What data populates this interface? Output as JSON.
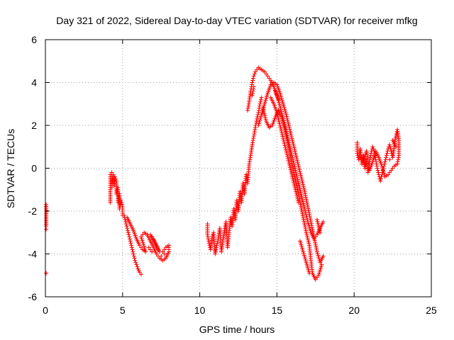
{
  "chart_data": {
    "type": "scatter",
    "title": "Day 321 of 2022, Sidereal Day-to-day VTEC variation (SDTVAR) for receiver mfkg",
    "xlabel": "GPS time / hours",
    "ylabel": "SDTVAR / TECUs",
    "xlim": [
      0,
      25
    ],
    "ylim": [
      -6,
      6
    ],
    "xticks": [
      "0",
      "5",
      "10",
      "15",
      "20",
      "25"
    ],
    "yticks": [
      "-6",
      "-4",
      "-2",
      "0",
      "2",
      "4",
      "6"
    ],
    "grid": true,
    "marker": "plus",
    "color": "#ff0000",
    "series": [
      {
        "points": [
          [
            0.05,
            -1.7
          ],
          [
            0.05,
            -2.2
          ],
          [
            0.05,
            -2.7
          ],
          [
            0.05,
            -2.85
          ],
          [
            0.05,
            -4.9
          ],
          [
            4.2,
            -0.3
          ],
          [
            4.2,
            -0.6
          ],
          [
            4.2,
            -1.0
          ],
          [
            4.2,
            -1.6
          ],
          [
            4.3,
            -0.2
          ],
          [
            4.3,
            -0.5
          ],
          [
            4.3,
            -0.9
          ],
          [
            4.4,
            -0.3
          ],
          [
            4.45,
            -0.8
          ],
          [
            4.5,
            -0.4
          ],
          [
            4.6,
            -0.6
          ],
          [
            4.6,
            -1.2
          ],
          [
            4.7,
            -0.9
          ],
          [
            4.7,
            -1.6
          ],
          [
            4.8,
            -1.2
          ],
          [
            4.8,
            -1.9
          ],
          [
            4.9,
            -1.5
          ],
          [
            5.0,
            -1.8
          ],
          [
            5.0,
            -2.2
          ],
          [
            5.1,
            -2.2
          ],
          [
            5.2,
            -2.5
          ],
          [
            5.3,
            -2.8
          ],
          [
            5.4,
            -3.1
          ],
          [
            5.5,
            -3.4
          ],
          [
            5.6,
            -3.7
          ],
          [
            5.7,
            -4.0
          ],
          [
            5.8,
            -4.3
          ],
          [
            5.9,
            -4.5
          ],
          [
            6.0,
            -4.7
          ],
          [
            6.1,
            -4.85
          ],
          [
            6.2,
            -4.95
          ],
          [
            5.3,
            -2.3
          ],
          [
            5.5,
            -2.6
          ],
          [
            5.7,
            -2.9
          ],
          [
            5.9,
            -3.3
          ],
          [
            6.1,
            -3.6
          ],
          [
            6.3,
            -3.8
          ],
          [
            6.5,
            -3.9
          ],
          [
            6.2,
            -3.2
          ],
          [
            6.4,
            -3.0
          ],
          [
            6.6,
            -3.1
          ],
          [
            6.8,
            -3.4
          ],
          [
            7.0,
            -3.7
          ],
          [
            7.2,
            -4.0
          ],
          [
            7.4,
            -4.2
          ],
          [
            7.6,
            -4.3
          ],
          [
            7.8,
            -4.2
          ],
          [
            8.0,
            -3.9
          ],
          [
            8.0,
            -3.6
          ],
          [
            7.8,
            -3.7
          ],
          [
            7.6,
            -3.9
          ],
          [
            7.4,
            -3.9
          ],
          [
            7.2,
            -3.6
          ],
          [
            7.0,
            -3.3
          ],
          [
            6.8,
            -3.1
          ],
          [
            7.1,
            -3.5
          ],
          [
            7.3,
            -3.8
          ],
          [
            7.7,
            -4.0
          ],
          [
            6.7,
            -3.7
          ],
          [
            6.9,
            -3.9
          ],
          [
            7.5,
            -4.1
          ],
          [
            10.5,
            -2.6
          ],
          [
            10.5,
            -3.1
          ],
          [
            10.6,
            -3.5
          ],
          [
            10.7,
            -3.8
          ],
          [
            10.8,
            -3.2
          ],
          [
            10.9,
            -3.0
          ],
          [
            11.0,
            -4.0
          ],
          [
            11.1,
            -3.6
          ],
          [
            11.2,
            -3.3
          ],
          [
            11.3,
            -2.8
          ],
          [
            11.4,
            -3.9
          ],
          [
            11.5,
            -3.4
          ],
          [
            11.6,
            -2.9
          ],
          [
            11.7,
            -2.5
          ],
          [
            11.8,
            -3.7
          ],
          [
            11.9,
            -3.0
          ],
          [
            12.0,
            -2.3
          ],
          [
            12.1,
            -2.7
          ],
          [
            12.2,
            -1.9
          ],
          [
            12.3,
            -2.4
          ],
          [
            12.4,
            -1.5
          ],
          [
            12.5,
            -2.0
          ],
          [
            12.6,
            -1.1
          ],
          [
            12.7,
            -1.6
          ],
          [
            12.8,
            -0.7
          ],
          [
            12.9,
            -1.2
          ],
          [
            13.0,
            -0.3
          ],
          [
            13.1,
            -0.7
          ],
          [
            13.2,
            0.2
          ],
          [
            13.3,
            0.6
          ],
          [
            13.4,
            1.1
          ],
          [
            13.5,
            1.5
          ],
          [
            13.6,
            1.9
          ],
          [
            13.7,
            2.3
          ],
          [
            13.8,
            2.6
          ],
          [
            13.9,
            3.0
          ],
          [
            14.0,
            3.3
          ],
          [
            13.1,
            2.7
          ],
          [
            13.2,
            3.1
          ],
          [
            13.3,
            3.6
          ],
          [
            13.4,
            4.0
          ],
          [
            13.5,
            4.3
          ],
          [
            13.6,
            4.5
          ],
          [
            13.7,
            4.6
          ],
          [
            13.8,
            4.7
          ],
          [
            13.9,
            4.65
          ],
          [
            14.0,
            4.6
          ],
          [
            14.2,
            4.5
          ],
          [
            14.4,
            4.3
          ],
          [
            14.6,
            4.1
          ],
          [
            14.8,
            3.8
          ],
          [
            15.0,
            3.4
          ],
          [
            15.2,
            2.9
          ],
          [
            15.4,
            2.3
          ],
          [
            15.6,
            1.7
          ],
          [
            15.8,
            1.1
          ],
          [
            16.0,
            0.5
          ],
          [
            16.2,
            -0.1
          ],
          [
            16.4,
            -0.7
          ],
          [
            16.6,
            -1.3
          ],
          [
            16.8,
            -1.9
          ],
          [
            17.0,
            -2.5
          ],
          [
            17.2,
            -3.0
          ],
          [
            17.4,
            -3.3
          ],
          [
            17.6,
            -3.1
          ],
          [
            17.8,
            -2.8
          ],
          [
            18.0,
            -2.5
          ],
          [
            13.8,
            2.0
          ],
          [
            14.0,
            2.5
          ],
          [
            14.2,
            3.0
          ],
          [
            14.4,
            3.5
          ],
          [
            14.6,
            3.9
          ],
          [
            14.8,
            4.0
          ],
          [
            15.0,
            3.9
          ],
          [
            15.2,
            3.5
          ],
          [
            15.4,
            3.0
          ],
          [
            15.6,
            2.5
          ],
          [
            15.8,
            1.9
          ],
          [
            16.0,
            1.3
          ],
          [
            16.2,
            0.7
          ],
          [
            16.4,
            0.1
          ],
          [
            16.6,
            -0.5
          ],
          [
            16.8,
            -1.1
          ],
          [
            17.0,
            -1.8
          ],
          [
            17.2,
            -2.5
          ],
          [
            17.4,
            -3.2
          ],
          [
            17.6,
            -3.9
          ],
          [
            17.8,
            -4.4
          ],
          [
            18.0,
            -4.1
          ],
          [
            14.1,
            2.8
          ],
          [
            14.3,
            2.2
          ],
          [
            14.5,
            1.9
          ],
          [
            14.7,
            2.0
          ],
          [
            14.9,
            2.4
          ],
          [
            15.1,
            2.7
          ],
          [
            15.3,
            2.4
          ],
          [
            15.5,
            1.9
          ],
          [
            15.7,
            1.2
          ],
          [
            15.9,
            0.5
          ],
          [
            16.1,
            -0.2
          ],
          [
            16.3,
            -0.9
          ],
          [
            16.5,
            -1.6
          ],
          [
            16.7,
            -2.3
          ],
          [
            16.9,
            -3.0
          ],
          [
            17.1,
            -3.6
          ],
          [
            17.2,
            -4.3
          ],
          [
            17.3,
            -4.9
          ],
          [
            17.5,
            -5.2
          ],
          [
            17.7,
            -5.0
          ],
          [
            17.9,
            -4.5
          ],
          [
            16.5,
            -3.4
          ],
          [
            16.7,
            -3.9
          ],
          [
            16.9,
            -4.4
          ],
          [
            17.1,
            -4.9
          ],
          [
            17.6,
            -2.4
          ],
          [
            17.8,
            -3.0
          ],
          [
            14.6,
            3.3
          ],
          [
            14.8,
            3.0
          ],
          [
            15.0,
            2.6
          ],
          [
            15.2,
            2.0
          ],
          [
            15.4,
            1.4
          ],
          [
            15.6,
            0.8
          ],
          [
            15.8,
            0.2
          ],
          [
            16.0,
            -0.4
          ],
          [
            16.2,
            -1.0
          ],
          [
            16.4,
            -1.6
          ],
          [
            13.4,
            3.4
          ],
          [
            13.5,
            3.8
          ],
          [
            14.9,
            3.6
          ],
          [
            15.1,
            3.2
          ],
          [
            20.2,
            1.2
          ],
          [
            20.2,
            0.7
          ],
          [
            20.3,
            0.4
          ],
          [
            20.4,
            0.9
          ],
          [
            20.5,
            0.2
          ],
          [
            20.6,
            0.6
          ],
          [
            20.7,
            0.0
          ],
          [
            20.8,
            0.4
          ],
          [
            20.9,
            -0.2
          ],
          [
            21.0,
            0.3
          ],
          [
            21.1,
            0.7
          ],
          [
            21.2,
            1.0
          ],
          [
            21.3,
            0.8
          ],
          [
            21.4,
            0.4
          ],
          [
            21.5,
            0.0
          ],
          [
            21.6,
            -0.3
          ],
          [
            21.7,
            -0.6
          ],
          [
            21.8,
            -0.3
          ],
          [
            21.9,
            0.0
          ],
          [
            22.0,
            0.3
          ],
          [
            22.1,
            0.6
          ],
          [
            22.2,
            0.9
          ],
          [
            22.3,
            1.1
          ],
          [
            22.4,
            0.8
          ],
          [
            22.5,
            0.5
          ],
          [
            22.6,
            1.0
          ],
          [
            22.7,
            1.5
          ],
          [
            22.8,
            1.8
          ],
          [
            22.9,
            1.3
          ],
          [
            22.9,
            0.6
          ],
          [
            22.8,
            0.2
          ],
          [
            22.6,
            0.1
          ],
          [
            22.4,
            -0.1
          ],
          [
            22.2,
            -0.3
          ],
          [
            22.0,
            -0.4
          ],
          [
            21.8,
            0.1
          ],
          [
            21.6,
            0.5
          ],
          [
            21.4,
            0.8
          ],
          [
            21.2,
            0.3
          ],
          [
            21.0,
            -0.1
          ],
          [
            20.8,
            0.8
          ],
          [
            20.6,
            0.3
          ],
          [
            20.4,
            0.5
          ],
          [
            22.5,
            1.3
          ],
          [
            22.7,
            1.0
          ],
          [
            22.3,
            0.4
          ]
        ]
      }
    ]
  }
}
